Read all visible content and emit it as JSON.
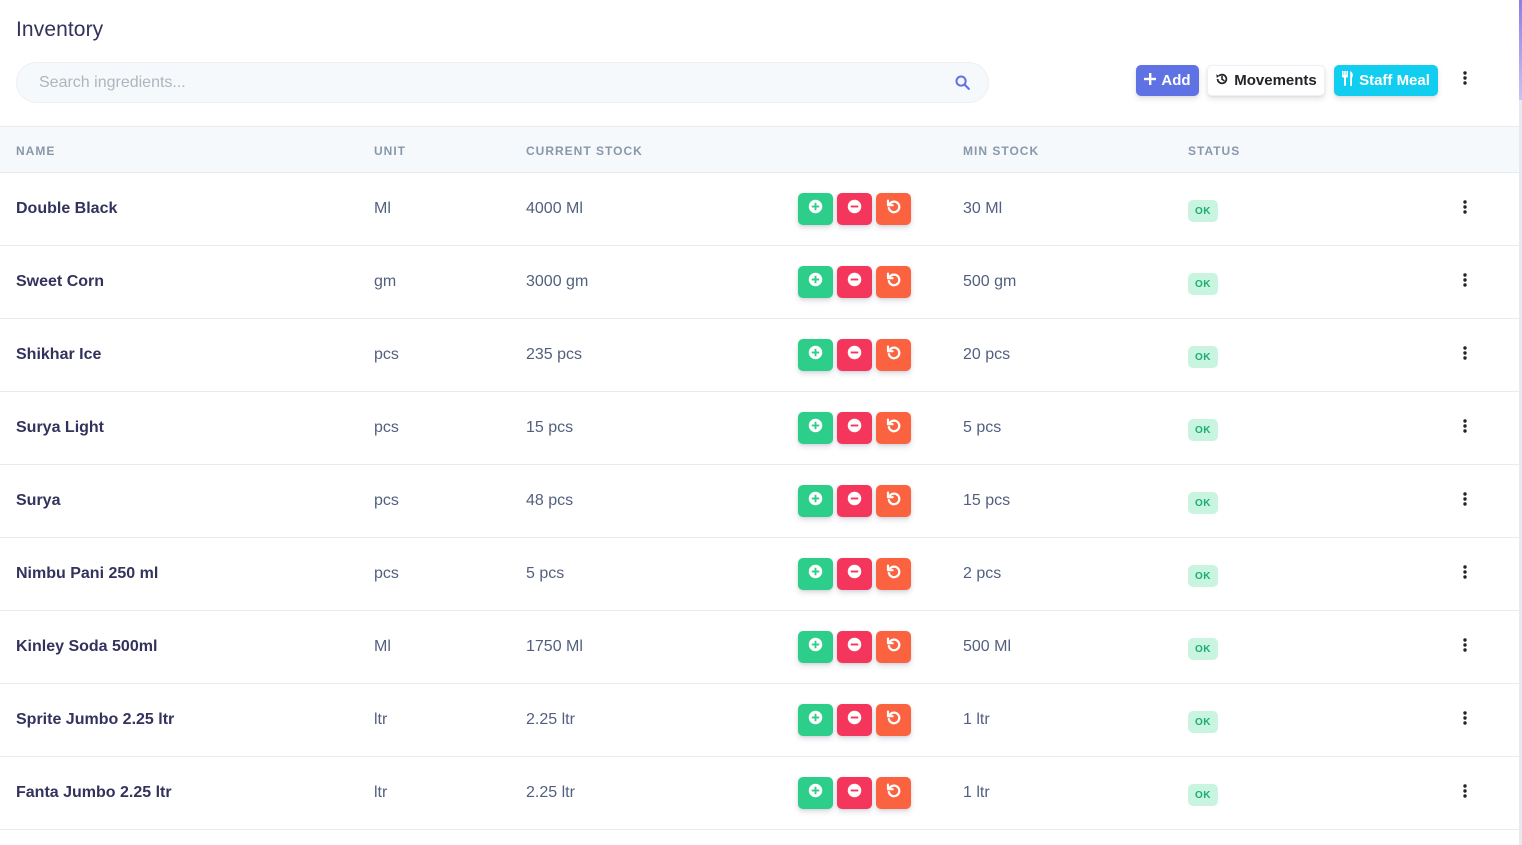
{
  "header": {
    "title": "Inventory",
    "search_placeholder": "Search ingredients...",
    "search_value": "",
    "buttons": {
      "add": "Add",
      "movements": "Movements",
      "staff_meal": "Staff Meal"
    }
  },
  "table": {
    "columns": {
      "name": "NAME",
      "unit": "UNIT",
      "current_stock": "CURRENT STOCK",
      "min_stock": "MIN STOCK",
      "status": "STATUS"
    },
    "rows": [
      {
        "name": "Double Black",
        "unit": "Ml",
        "current_stock": "4000 Ml",
        "min_stock": "30 Ml",
        "status": "OK"
      },
      {
        "name": "Sweet Corn",
        "unit": "gm",
        "current_stock": "3000 gm",
        "min_stock": "500 gm",
        "status": "OK"
      },
      {
        "name": "Shikhar Ice",
        "unit": "pcs",
        "current_stock": "235 pcs",
        "min_stock": "20 pcs",
        "status": "OK"
      },
      {
        "name": "Surya Light",
        "unit": "pcs",
        "current_stock": "15 pcs",
        "min_stock": "5 pcs",
        "status": "OK"
      },
      {
        "name": "Surya",
        "unit": "pcs",
        "current_stock": "48 pcs",
        "min_stock": "15 pcs",
        "status": "OK"
      },
      {
        "name": "Nimbu Pani 250 ml",
        "unit": "pcs",
        "current_stock": "5 pcs",
        "min_stock": "2 pcs",
        "status": "OK"
      },
      {
        "name": "Kinley Soda 500ml",
        "unit": "Ml",
        "current_stock": "1750 Ml",
        "min_stock": "500 Ml",
        "status": "OK"
      },
      {
        "name": "Sprite Jumbo 2.25 ltr",
        "unit": "ltr",
        "current_stock": "2.25 ltr",
        "min_stock": "1 ltr",
        "status": "OK"
      },
      {
        "name": "Fanta Jumbo 2.25 ltr",
        "unit": "ltr",
        "current_stock": "2.25 ltr",
        "min_stock": "1 ltr",
        "status": "OK"
      }
    ]
  },
  "icons": {
    "search": "search-icon",
    "add": "plus-icon",
    "movements": "history-icon",
    "staff_meal": "utensils-icon",
    "more": "kebab-icon",
    "row_add": "plus-circle-icon",
    "row_remove": "minus-circle-icon",
    "row_reset": "undo-icon"
  },
  "colors": {
    "primary": "#5e72e4",
    "info": "#11cdef",
    "success": "#2dce89",
    "danger": "#f5365c",
    "warning": "#fb6340",
    "badge_bg": "#c9f5e0",
    "badge_text": "#1aae6f"
  }
}
